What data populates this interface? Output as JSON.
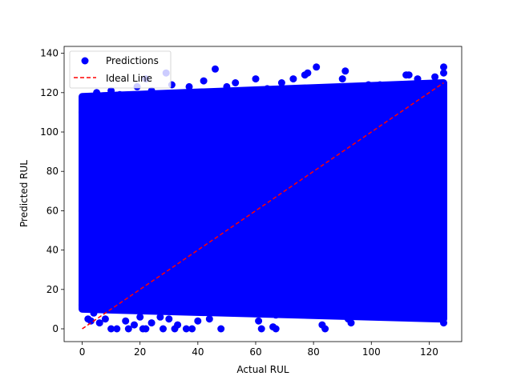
{
  "chart_data": {
    "type": "scatter",
    "title": "",
    "xlabel": "Actual RUL",
    "ylabel": "Predicted RUL",
    "xlim": [
      -6.25,
      131.25
    ],
    "ylim": [
      -6.5,
      143.5
    ],
    "xticks": [
      0,
      20,
      40,
      60,
      80,
      100,
      120
    ],
    "yticks": [
      0,
      20,
      40,
      60,
      80,
      100,
      120,
      140
    ],
    "grid": false,
    "legend_position": "top-left",
    "series": [
      {
        "name": "Predictions",
        "kind": "scatter",
        "color": "#0000ff",
        "dense_band": {
          "x_range": [
            0,
            125
          ],
          "lower": [
            [
              0,
              10
            ],
            [
              125,
              5
            ]
          ],
          "upper": [
            [
              0,
              118
            ],
            [
              125,
              125
            ]
          ]
        },
        "points": [
          [
            0,
            12
          ],
          [
            0,
            60
          ],
          [
            0,
            110
          ],
          [
            1,
            116
          ],
          [
            2,
            5
          ],
          [
            3,
            4
          ],
          [
            4,
            8
          ],
          [
            5,
            120
          ],
          [
            6,
            3
          ],
          [
            8,
            5
          ],
          [
            10,
            0
          ],
          [
            10,
            121
          ],
          [
            12,
            0
          ],
          [
            13,
            119
          ],
          [
            15,
            4
          ],
          [
            16,
            0
          ],
          [
            18,
            2
          ],
          [
            19,
            123
          ],
          [
            20,
            6
          ],
          [
            21,
            0
          ],
          [
            22,
            0
          ],
          [
            22,
            127
          ],
          [
            24,
            3
          ],
          [
            24,
            121
          ],
          [
            27,
            6
          ],
          [
            28,
            0
          ],
          [
            29,
            130
          ],
          [
            30,
            5
          ],
          [
            31,
            124
          ],
          [
            32,
            0
          ],
          [
            33,
            2
          ],
          [
            36,
            0
          ],
          [
            37,
            123
          ],
          [
            38,
            0
          ],
          [
            40,
            4
          ],
          [
            42,
            126
          ],
          [
            44,
            5
          ],
          [
            46,
            132
          ],
          [
            48,
            0
          ],
          [
            50,
            123
          ],
          [
            52,
            10
          ],
          [
            53,
            125
          ],
          [
            57,
            9
          ],
          [
            60,
            127
          ],
          [
            61,
            4
          ],
          [
            62,
            0
          ],
          [
            64,
            122
          ],
          [
            66,
            1
          ],
          [
            67,
            0
          ],
          [
            67,
            7
          ],
          [
            69,
            125
          ],
          [
            70,
            10
          ],
          [
            71,
            10
          ],
          [
            73,
            127
          ],
          [
            76,
            10
          ],
          [
            77,
            129
          ],
          [
            78,
            130
          ],
          [
            80,
            8
          ],
          [
            81,
            133
          ],
          [
            83,
            2
          ],
          [
            84,
            0
          ],
          [
            86,
            120
          ],
          [
            88,
            15
          ],
          [
            90,
            127
          ],
          [
            91,
            131
          ],
          [
            92,
            5
          ],
          [
            93,
            3
          ],
          [
            94,
            9
          ],
          [
            96,
            123
          ],
          [
            98,
            15
          ],
          [
            99,
            124
          ],
          [
            100,
            22
          ],
          [
            102,
            18
          ],
          [
            103,
            124
          ],
          [
            106,
            9
          ],
          [
            108,
            15
          ],
          [
            110,
            124
          ],
          [
            111,
            12
          ],
          [
            112,
            129
          ],
          [
            113,
            129
          ],
          [
            115,
            15
          ],
          [
            116,
            127
          ],
          [
            118,
            18
          ],
          [
            120,
            12
          ],
          [
            122,
            128
          ],
          [
            124,
            8
          ],
          [
            125,
            3
          ],
          [
            125,
            133
          ],
          [
            125,
            130
          ],
          [
            125,
            15
          ]
        ]
      },
      {
        "name": "Ideal Line",
        "kind": "line",
        "style": "dashed",
        "color": "#ff0000",
        "points": [
          [
            0,
            0
          ],
          [
            125,
            125
          ]
        ]
      }
    ]
  }
}
